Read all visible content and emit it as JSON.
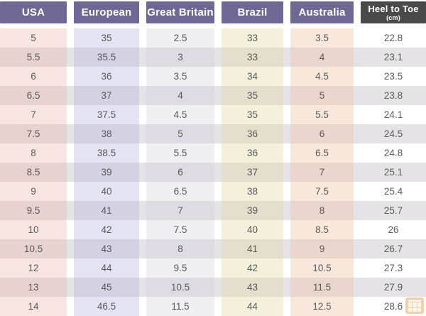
{
  "chart_data": {
    "type": "table",
    "columns": [
      {
        "id": "usa",
        "label": "USA"
      },
      {
        "id": "european",
        "label": "European"
      },
      {
        "id": "great_britain",
        "label": "Great Britain"
      },
      {
        "id": "brazil",
        "label": "Brazil"
      },
      {
        "id": "australia",
        "label": "Australia"
      },
      {
        "id": "heel_to_toe",
        "label": "Heel to Toe",
        "sublabel": "(cm)"
      }
    ],
    "rows": [
      [
        "5",
        "35",
        "2.5",
        "33",
        "3.5",
        "22.8"
      ],
      [
        "5.5",
        "35.5",
        "3",
        "33",
        "4",
        "23.1"
      ],
      [
        "6",
        "36",
        "3.5",
        "34",
        "4.5",
        "23.5"
      ],
      [
        "6.5",
        "37",
        "4",
        "35",
        "5",
        "23.8"
      ],
      [
        "7",
        "37.5",
        "4.5",
        "35",
        "5.5",
        "24.1"
      ],
      [
        "7.5",
        "38",
        "5",
        "36",
        "6",
        "24.5"
      ],
      [
        "8",
        "38.5",
        "5.5",
        "36",
        "6.5",
        "24.8"
      ],
      [
        "8.5",
        "39",
        "6",
        "37",
        "7",
        "25.1"
      ],
      [
        "9",
        "40",
        "6.5",
        "38",
        "7.5",
        "25.4"
      ],
      [
        "9.5",
        "41",
        "7",
        "39",
        "8",
        "25.7"
      ],
      [
        "10",
        "42",
        "7.5",
        "40",
        "8.5",
        "26"
      ],
      [
        "10.5",
        "43",
        "8",
        "41",
        "9",
        "26.7"
      ],
      [
        "12",
        "44",
        "9.5",
        "42",
        "10.5",
        "27.3"
      ],
      [
        "13",
        "45",
        "10.5",
        "43",
        "11.5",
        "27.9"
      ],
      [
        "14",
        "46.5",
        "11.5",
        "44",
        "12.5",
        "28.6"
      ]
    ]
  },
  "watermark": {
    "icon": "grid-logo"
  },
  "colors": {
    "header_purple": "#6f6894",
    "header_dark": "#4a4a4a",
    "header_text": "#ffffff",
    "cell_text": "#5a5a5a",
    "row_odd": "#ffffff",
    "row_even": "#e6e3e6",
    "tint_usa": "rgba(235,179,166,0.35)",
    "tint_european": "rgba(178,176,221,0.35)",
    "tint_great_britain": "rgba(205,202,220,0.30)",
    "tint_brazil": "rgba(224,218,168,0.40)",
    "tint_australia": "rgba(240,196,166,0.40)",
    "watermark_orange": "#e8a05a"
  }
}
